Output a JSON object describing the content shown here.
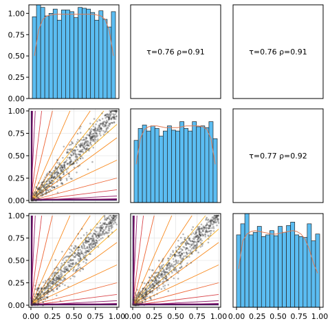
{
  "chart_data": {
    "type": "pairplot",
    "variables": 3,
    "diagonal": {
      "type": "histogram",
      "bins": [
        0,
        0.05,
        0.1,
        0.15,
        0.2,
        0.25,
        0.3,
        0.35,
        0.4,
        0.45,
        0.5,
        0.55,
        0.6,
        0.65,
        0.7,
        0.75,
        0.8,
        0.85,
        0.9,
        0.95,
        1.0
      ],
      "bar_color": "#5bbdf2",
      "curve_color": "#e07b55",
      "ylim": [
        0,
        1.1
      ],
      "panels": [
        {
          "values": [
            0.96,
            1.1,
            1.07,
            0.97,
            1.0,
            1.05,
            0.92,
            1.04,
            1.04,
            1.02,
            0.95,
            1.07,
            1.06,
            1.05,
            1.01,
            0.92,
            1.03,
            0.93,
            0.84,
            1.02
          ],
          "curve": [
            0.5,
            0.8,
            0.93,
            0.97,
            0.98,
            0.99,
            0.99,
            0.99,
            0.99,
            0.99,
            0.99,
            0.99,
            0.99,
            0.99,
            0.99,
            0.98,
            0.97,
            0.93,
            0.8,
            0.5
          ]
        },
        {
          "values": [
            0.73,
            0.87,
            0.91,
            0.84,
            0.9,
            0.87,
            0.78,
            0.84,
            0.9,
            0.85,
            0.84,
            0.95,
            0.87,
            0.84,
            0.95,
            0.89,
            0.9,
            0.88,
            0.95,
            0.75
          ],
          "curve": [
            0.45,
            0.75,
            0.86,
            0.89,
            0.9,
            0.9,
            0.89,
            0.88,
            0.88,
            0.88,
            0.88,
            0.89,
            0.9,
            0.9,
            0.9,
            0.9,
            0.89,
            0.86,
            0.75,
            0.45
          ]
        },
        {
          "values": [
            0.85,
            0.98,
            1.1,
            0.85,
            0.88,
            0.95,
            0.83,
            0.85,
            0.9,
            0.84,
            0.95,
            0.88,
            0.96,
            1.0,
            0.85,
            0.83,
            0.82,
            0.98,
            0.78,
            0.86
          ],
          "curve": [
            0.45,
            0.78,
            0.86,
            0.89,
            0.9,
            0.89,
            0.88,
            0.87,
            0.86,
            0.86,
            0.87,
            0.88,
            0.89,
            0.9,
            0.89,
            0.86,
            0.8,
            0.68,
            0.52,
            0.4
          ]
        }
      ]
    },
    "upper": [
      {
        "row": 0,
        "col": 1,
        "text": "τ=0.76  ρ=0.91"
      },
      {
        "row": 0,
        "col": 2,
        "text": "τ=0.76  ρ=0.91"
      },
      {
        "row": 1,
        "col": 2,
        "text": "τ=0.77  ρ=0.92"
      }
    ],
    "lower": {
      "type": "scatter_with_copula_contours",
      "point_color": "#333333",
      "panels": [
        {
          "row": 1,
          "col": 0,
          "dependence": 0.91
        },
        {
          "row": 2,
          "col": 0,
          "dependence": 0.91
        },
        {
          "row": 2,
          "col": 1,
          "dependence": 0.92
        }
      ],
      "contour_colors": [
        "#1a0a3a",
        "#3d0e5a",
        "#6a1470",
        "#93206d",
        "#b92e5f",
        "#d8444a",
        "#ee6332",
        "#f8891c",
        "#f7b124"
      ]
    },
    "x_ticks": [
      "0.00",
      "0.25",
      "0.50",
      "0.75",
      "1.00"
    ],
    "y_ticks": [
      "0.00",
      "0.25",
      "0.50",
      "0.75",
      "1.00"
    ],
    "xlim": [
      0,
      1
    ],
    "ylim": [
      0,
      1
    ]
  }
}
